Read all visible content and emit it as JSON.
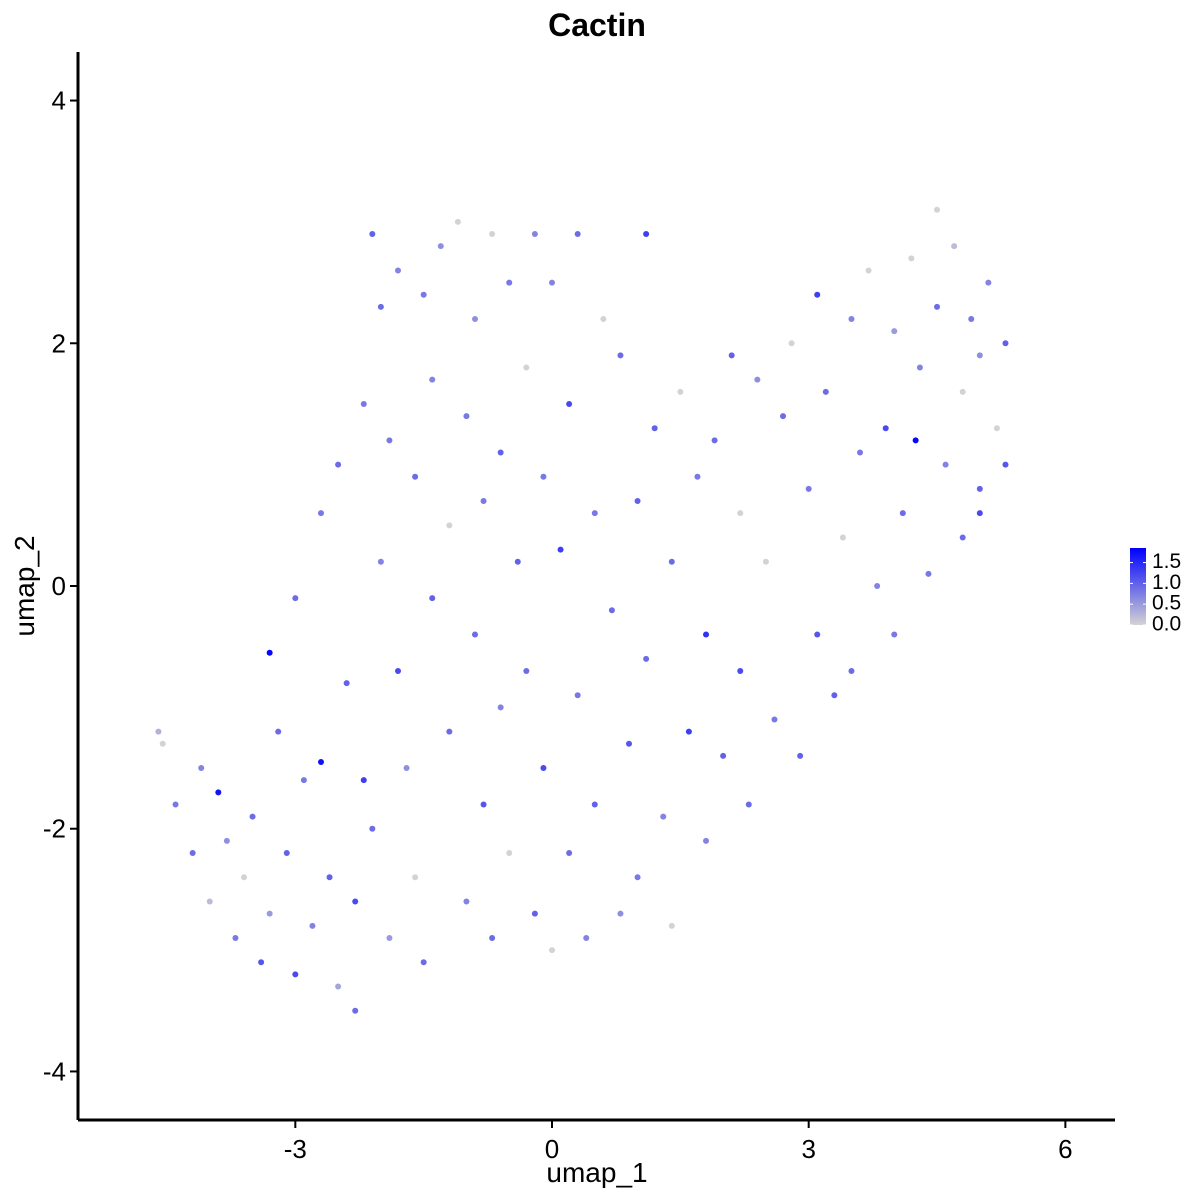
{
  "chart_data": {
    "type": "scatter",
    "title": "Cactin",
    "x_label": "umap_1",
    "y_label": "umap_2",
    "xlim": [
      -5.54,
      6.58
    ],
    "ylim": [
      -4.4,
      4.4
    ],
    "xticks": [
      -3,
      0,
      3,
      6
    ],
    "yticks": [
      -4,
      -2,
      0,
      2,
      4
    ],
    "grid": false,
    "color_low": "#D3D3D3",
    "color_high": "#0000FF",
    "clim": [
      0,
      1.85
    ],
    "colorbar_ticks": [
      {
        "value": 0,
        "label": "0.0"
      },
      0.5,
      {
        "value": 1,
        "label": "1.0"
      },
      1.5
    ],
    "x": [
      -4.6,
      -4.55,
      -4.4,
      -4.2,
      -4.1,
      -4.0,
      -3.9,
      -3.8,
      -3.7,
      -3.6,
      -3.5,
      -3.4,
      -3.3,
      -3.3,
      -3.2,
      -3.1,
      -3.0,
      -3.0,
      -2.9,
      -2.8,
      -2.7,
      -2.7,
      -2.6,
      -2.5,
      -2.5,
      -2.4,
      -2.3,
      -2.3,
      -2.2,
      -2.2,
      -2.1,
      -2.1,
      -2.0,
      -2.0,
      -1.9,
      -1.9,
      -1.8,
      -1.8,
      -1.7,
      -1.6,
      -1.6,
      -1.5,
      -1.5,
      -1.4,
      -1.4,
      -1.3,
      -1.2,
      -1.2,
      -1.1,
      -1.0,
      -1.0,
      -0.9,
      -0.9,
      -0.8,
      -0.8,
      -0.7,
      -0.7,
      -0.6,
      -0.6,
      -0.5,
      -0.5,
      -0.4,
      -0.3,
      -0.3,
      -0.2,
      -0.2,
      -0.1,
      -0.1,
      0.0,
      0.0,
      0.1,
      0.2,
      0.2,
      0.3,
      0.3,
      0.4,
      0.5,
      0.5,
      0.6,
      0.7,
      0.8,
      0.8,
      0.9,
      1.0,
      1.0,
      1.1,
      1.1,
      1.2,
      1.3,
      1.4,
      1.4,
      1.5,
      1.6,
      1.7,
      1.8,
      1.8,
      1.9,
      2.0,
      2.1,
      2.2,
      2.2,
      2.3,
      2.4,
      2.5,
      2.6,
      2.7,
      2.8,
      2.9,
      3.0,
      3.1,
      3.1,
      3.2,
      3.3,
      3.4,
      3.5,
      3.5,
      3.6,
      3.7,
      3.8,
      3.9,
      4.0,
      4.0,
      4.1,
      4.2,
      4.25,
      4.3,
      4.4,
      4.5,
      4.5,
      4.6,
      4.7,
      4.8,
      4.8,
      4.9,
      5.0,
      5.0,
      5.1,
      5.2,
      5.3,
      5.3,
      5.0
    ],
    "y": [
      -1.2,
      -1.3,
      -1.8,
      -2.2,
      -1.5,
      -2.6,
      -1.7,
      -2.1,
      -2.9,
      -2.4,
      -1.9,
      -3.1,
      -2.7,
      -0.55,
      -1.2,
      -2.2,
      -3.2,
      -0.1,
      -1.6,
      -2.8,
      -1.45,
      0.6,
      -2.4,
      -3.3,
      1.0,
      -0.8,
      -2.6,
      -3.5,
      1.5,
      -1.6,
      2.9,
      -2.0,
      0.2,
      2.3,
      -2.9,
      1.2,
      -0.7,
      2.6,
      -1.5,
      0.9,
      -2.4,
      2.4,
      -3.1,
      1.7,
      -0.1,
      2.8,
      -1.2,
      0.5,
      3.0,
      -2.6,
      1.4,
      -0.4,
      2.2,
      -1.8,
      0.7,
      -2.9,
      2.9,
      1.1,
      -1.0,
      2.5,
      -2.2,
      0.2,
      -0.7,
      1.8,
      -2.7,
      2.9,
      0.9,
      -1.5,
      -3.0,
      2.5,
      0.3,
      -2.2,
      1.5,
      -0.9,
      2.9,
      -2.9,
      0.6,
      -1.8,
      2.2,
      -0.2,
      -2.7,
      1.9,
      -1.3,
      0.7,
      -2.4,
      2.9,
      -0.6,
      1.3,
      -1.9,
      -2.8,
      0.2,
      1.6,
      -1.2,
      0.9,
      -2.1,
      -0.4,
      1.2,
      -1.4,
      1.9,
      -0.7,
      0.6,
      -1.8,
      1.7,
      0.2,
      -1.1,
      1.4,
      2.0,
      -1.4,
      0.8,
      2.4,
      -0.4,
      1.6,
      -0.9,
      0.4,
      2.2,
      -0.7,
      1.1,
      2.6,
      0.0,
      1.3,
      2.1,
      -0.4,
      0.6,
      2.7,
      1.2,
      1.8,
      0.1,
      3.1,
      2.3,
      1.0,
      2.8,
      0.4,
      1.6,
      2.2,
      0.8,
      1.9,
      2.5,
      1.3,
      2.0,
      1.0,
      0.6
    ],
    "values": [
      0.3,
      0.0,
      0.8,
      0.9,
      0.7,
      0.2,
      1.7,
      0.6,
      0.8,
      0.0,
      0.9,
      1.1,
      0.5,
      1.8,
      0.9,
      1.0,
      1.2,
      0.9,
      0.8,
      0.7,
      1.7,
      0.8,
      1.0,
      0.4,
      0.9,
      1.0,
      1.2,
      0.9,
      0.8,
      1.3,
      1.0,
      0.9,
      0.7,
      0.9,
      0.5,
      0.8,
      1.2,
      0.7,
      0.6,
      0.9,
      0.0,
      0.8,
      0.9,
      0.7,
      1.0,
      0.6,
      0.9,
      0.0,
      0.0,
      0.7,
      0.8,
      0.9,
      0.6,
      1.1,
      0.8,
      0.9,
      0.0,
      1.0,
      0.7,
      0.8,
      0.0,
      1.0,
      0.9,
      0.0,
      1.0,
      0.7,
      0.8,
      1.2,
      0.0,
      0.7,
      1.3,
      0.9,
      1.2,
      0.8,
      0.9,
      0.7,
      0.8,
      1.0,
      0.0,
      0.9,
      0.6,
      0.9,
      1.1,
      1.0,
      0.8,
      1.3,
      0.9,
      1.0,
      0.7,
      0.0,
      0.9,
      0.0,
      1.3,
      0.8,
      0.7,
      1.4,
      0.9,
      1.0,
      1.0,
      1.2,
      0.0,
      0.9,
      0.6,
      0.0,
      0.8,
      0.9,
      0.0,
      1.0,
      0.8,
      1.3,
      1.1,
      0.9,
      1.0,
      0.0,
      0.7,
      0.9,
      0.8,
      0.0,
      0.7,
      1.2,
      0.5,
      0.8,
      0.9,
      0.0,
      1.8,
      0.7,
      0.8,
      0.0,
      0.9,
      0.7,
      0.2,
      0.9,
      0.0,
      0.8,
      1.0,
      0.6,
      0.7,
      0.0,
      1.0,
      1.1,
      1.2
    ]
  }
}
